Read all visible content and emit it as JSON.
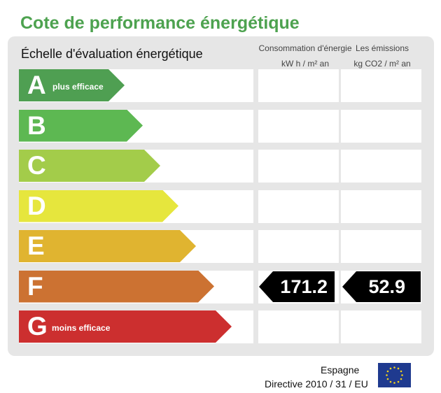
{
  "title": "Cote de performance énergétique",
  "scale_title": "Échelle d'évaluation énergétique",
  "columns": {
    "consumption": {
      "line1": "Consommation d'énergie",
      "line2": "kW h / m² an"
    },
    "emissions": {
      "line1": "Les émissions",
      "line2": "kg CO2 / m² an"
    }
  },
  "ratings": [
    {
      "letter": "A",
      "sublabel": "plus efficace",
      "color": "#4f9f52"
    },
    {
      "letter": "B",
      "sublabel": "",
      "color": "#5db852"
    },
    {
      "letter": "C",
      "sublabel": "",
      "color": "#a3cc4a"
    },
    {
      "letter": "D",
      "sublabel": "",
      "color": "#e6e63d"
    },
    {
      "letter": "E",
      "sublabel": "",
      "color": "#e0b430"
    },
    {
      "letter": "F",
      "sublabel": "",
      "color": "#cc7232"
    },
    {
      "letter": "G",
      "sublabel": "moins efficace",
      "color": "#cc2f2f"
    }
  ],
  "current": {
    "rating": "F",
    "consumption": "171.2",
    "emissions": "52.9"
  },
  "footer": {
    "country": "Espagne",
    "directive": "Directive 2010 / 31 / EU"
  },
  "icons": {
    "flag": "eu-flag-icon"
  }
}
